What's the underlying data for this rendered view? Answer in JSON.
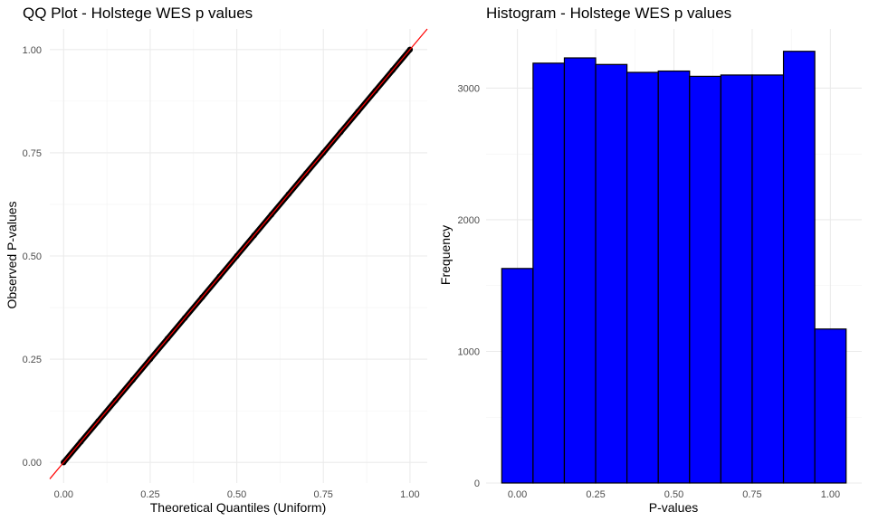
{
  "chart_data": [
    {
      "type": "scatter",
      "title": "QQ Plot -  Holstege WES p values",
      "xlabel": "Theoretical Quantiles (Uniform)",
      "ylabel": "Observed P-values",
      "xlim": [
        -0.04,
        1.05
      ],
      "ylim": [
        -0.05,
        1.05
      ],
      "x_ticks": [
        0.0,
        0.25,
        0.5,
        0.75,
        1.0
      ],
      "x_tick_labels": [
        "0.00",
        "0.25",
        "0.50",
        "0.75",
        "1.00"
      ],
      "y_ticks": [
        0.0,
        0.25,
        0.5,
        0.75,
        1.0
      ],
      "y_tick_labels": [
        "0.00",
        "0.25",
        "0.50",
        "0.75",
        "1.00"
      ],
      "grid": true,
      "series": [
        {
          "points": [
            [
              0.0,
              0.0
            ],
            [
              0.05,
              0.05
            ],
            [
              0.1,
              0.1
            ],
            [
              0.15,
              0.15
            ],
            [
              0.2,
              0.2
            ],
            [
              0.25,
              0.25
            ],
            [
              0.3,
              0.3
            ],
            [
              0.35,
              0.35
            ],
            [
              0.4,
              0.4
            ],
            [
              0.45,
              0.45
            ],
            [
              0.5,
              0.5
            ],
            [
              0.55,
              0.55
            ],
            [
              0.6,
              0.6
            ],
            [
              0.65,
              0.65
            ],
            [
              0.7,
              0.7
            ],
            [
              0.75,
              0.75
            ],
            [
              0.8,
              0.8
            ],
            [
              0.85,
              0.85
            ],
            [
              0.9,
              0.9
            ],
            [
              0.95,
              0.95
            ],
            [
              1.0,
              1.0
            ]
          ],
          "color": "#000000"
        }
      ],
      "reference_line": {
        "intercept": 0,
        "slope": 1,
        "color": "#ff0000"
      }
    },
    {
      "type": "bar",
      "title": "Histogram -  Holstege WES p values",
      "xlabel": "P-values",
      "ylabel": "Frequency",
      "bin_width": 0.1,
      "bin_centers": [
        0.0,
        0.1,
        0.2,
        0.3,
        0.4,
        0.5,
        0.6,
        0.7,
        0.8,
        0.9,
        1.0
      ],
      "values": [
        1630,
        3190,
        3230,
        3180,
        3120,
        3130,
        3090,
        3100,
        3100,
        3280,
        1170
      ],
      "xlim": [
        -0.1,
        1.1
      ],
      "ylim": [
        0,
        3450
      ],
      "x_ticks": [
        0.0,
        0.25,
        0.5,
        0.75,
        1.0
      ],
      "x_tick_labels": [
        "0.00",
        "0.25",
        "0.50",
        "0.75",
        "1.00"
      ],
      "y_ticks": [
        0,
        1000,
        2000,
        3000
      ],
      "y_tick_labels": [
        "0",
        "1000",
        "2000",
        "3000"
      ],
      "grid": true,
      "fill_color": "#0000ff",
      "border_color": "#000000"
    }
  ]
}
